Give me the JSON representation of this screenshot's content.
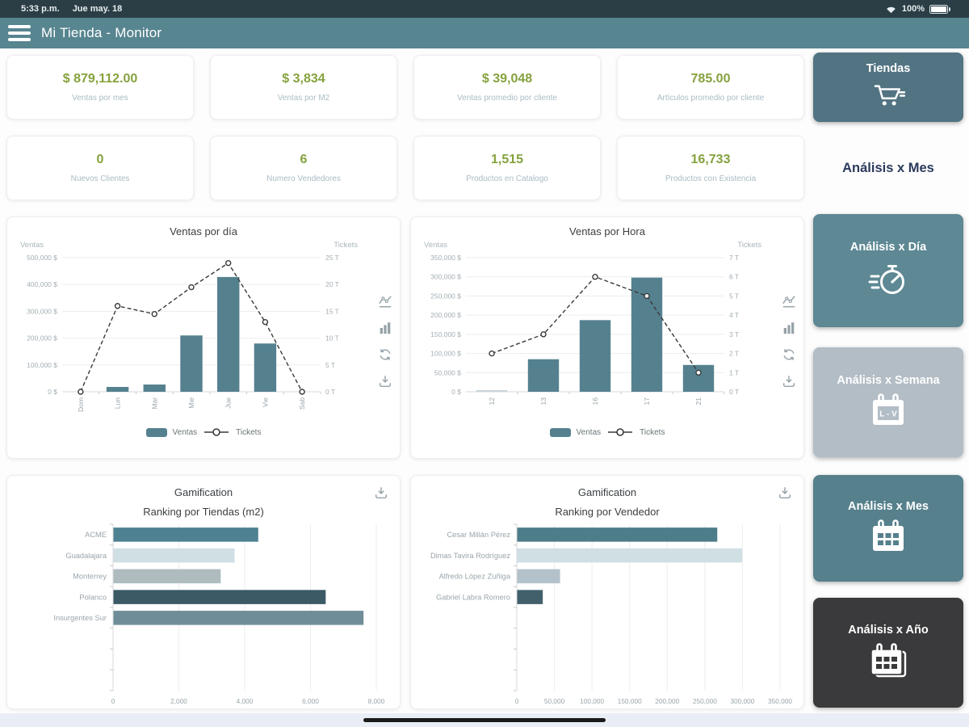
{
  "status_bar": {
    "time": "5:33 p.m.",
    "date": "Jue may. 18",
    "battery_percent": "100%",
    "icons": [
      "wifi-icon",
      "battery-icon"
    ]
  },
  "header": {
    "title": "Mi Tienda - Monitor",
    "menu_icon": "hamburger-menu-icon",
    "background": "#578590"
  },
  "kpi_cards": [
    {
      "value": "$ 879,112.00",
      "label": "Ventas por mes"
    },
    {
      "value": "$ 3,834",
      "label": "Ventas por M2"
    },
    {
      "value": "$ 39,048",
      "label": "Ventas promedio por cliente"
    },
    {
      "value": "785.00",
      "label": "Artículos promedio por cliente"
    },
    {
      "value": "0",
      "label": "Nuevos Clientes"
    },
    {
      "value": "6",
      "label": "Numero Vendedores"
    },
    {
      "value": "1,515",
      "label": "Productos en Catalogo"
    },
    {
      "value": "16,733",
      "label": "Productos con Existencia"
    }
  ],
  "chart_toolbar_icons": [
    "line-chart-icon",
    "bar-chart-icon",
    "refresh-icon",
    "download-icon"
  ],
  "chart_data": [
    {
      "type": "bar+line",
      "title": "Ventas por día",
      "ylabel_left": "Ventas",
      "ylabel_right": "Tickets",
      "categories": [
        "Dom",
        "Lun",
        "Mar",
        "Mie",
        "Jue",
        "Vie",
        "Sab"
      ],
      "series": [
        {
          "name": "Ventas",
          "type": "bar",
          "color": "#55818f",
          "values": [
            0,
            18000,
            27000,
            210000,
            428000,
            180000,
            0
          ]
        },
        {
          "name": "Tickets",
          "type": "line",
          "color": "#3a3a3a",
          "values": [
            0,
            16,
            14.5,
            19.5,
            24,
            13,
            0
          ]
        }
      ],
      "y_left": {
        "min": 0,
        "max": 500000,
        "step": 100000,
        "suffix": " $"
      },
      "y_right": {
        "min": 0,
        "max": 25,
        "step": 5,
        "suffix": " T"
      },
      "legend": [
        "Ventas",
        "Tickets"
      ]
    },
    {
      "type": "bar+line",
      "title": "Ventas por Hora",
      "ylabel_left": "Ventas",
      "ylabel_right": "Tickets",
      "categories": [
        "12",
        "13",
        "16",
        "17",
        "21"
      ],
      "series": [
        {
          "name": "Ventas",
          "type": "bar",
          "color": "#55818f",
          "values": [
            3000,
            85000,
            187000,
            298000,
            70000
          ]
        },
        {
          "name": "Tickets",
          "type": "line",
          "color": "#3a3a3a",
          "values": [
            2,
            3,
            6,
            5,
            1
          ]
        }
      ],
      "y_left": {
        "min": 0,
        "max": 350000,
        "step": 50000,
        "suffix": " $"
      },
      "y_right": {
        "min": 0,
        "max": 7,
        "step": 1,
        "suffix": " T"
      },
      "legend": [
        "Ventas",
        "Tickets"
      ]
    },
    {
      "type": "hbar",
      "title": "Gamification",
      "subtitle": "Ranking por Tiendas (m2)",
      "categories": [
        "ACME",
        "Guadalajara",
        "Monterrey",
        "Polanco",
        "Insurgentes Sur"
      ],
      "values": [
        4400,
        3680,
        3260,
        6450,
        7600
      ],
      "colors": [
        "#4e8191",
        "#cfdfe3",
        "#aebcc0",
        "#3b5a66",
        "#6f8d99"
      ],
      "x_ticks": [
        0,
        2000,
        4000,
        6000,
        8000
      ],
      "rows_total": 8,
      "toolbar_icon": "download-icon"
    },
    {
      "type": "hbar",
      "title": "Gamification",
      "subtitle": "Ranking por Vendedor",
      "categories": [
        "Cesar Millán Pérez",
        "Dimas Tavira Rodríguez",
        "Alfredo López Zuñiga",
        "Gabriel Labra Romero"
      ],
      "values": [
        266000,
        299000,
        57000,
        34000
      ],
      "colors": [
        "#4e7d8a",
        "#cfdfe3",
        "#b3c1ca",
        "#41606c"
      ],
      "x_ticks": [
        0,
        50000,
        100000,
        150000,
        200000,
        250000,
        300000,
        350000
      ],
      "rows_total": 8,
      "toolbar_icon": "download-icon"
    }
  ],
  "sidebar": {
    "title": "Análisis x Mes",
    "buttons": [
      {
        "label": "Tiendas",
        "icon": "shopping-cart-icon",
        "color": "#527482"
      },
      {
        "label": "Análisis x Día",
        "icon": "stopwatch-icon",
        "color": "#5d8894"
      },
      {
        "label": "Análisis x Semana",
        "icon": "calendar-week-icon",
        "color": "#b2bdc6"
      },
      {
        "label": "Análisis x Mes",
        "icon": "calendar-month-icon",
        "color": "#56808c"
      },
      {
        "label": "Análisis x Año",
        "icon": "calendar-year-icon",
        "color": "#3a3a3c"
      }
    ]
  }
}
